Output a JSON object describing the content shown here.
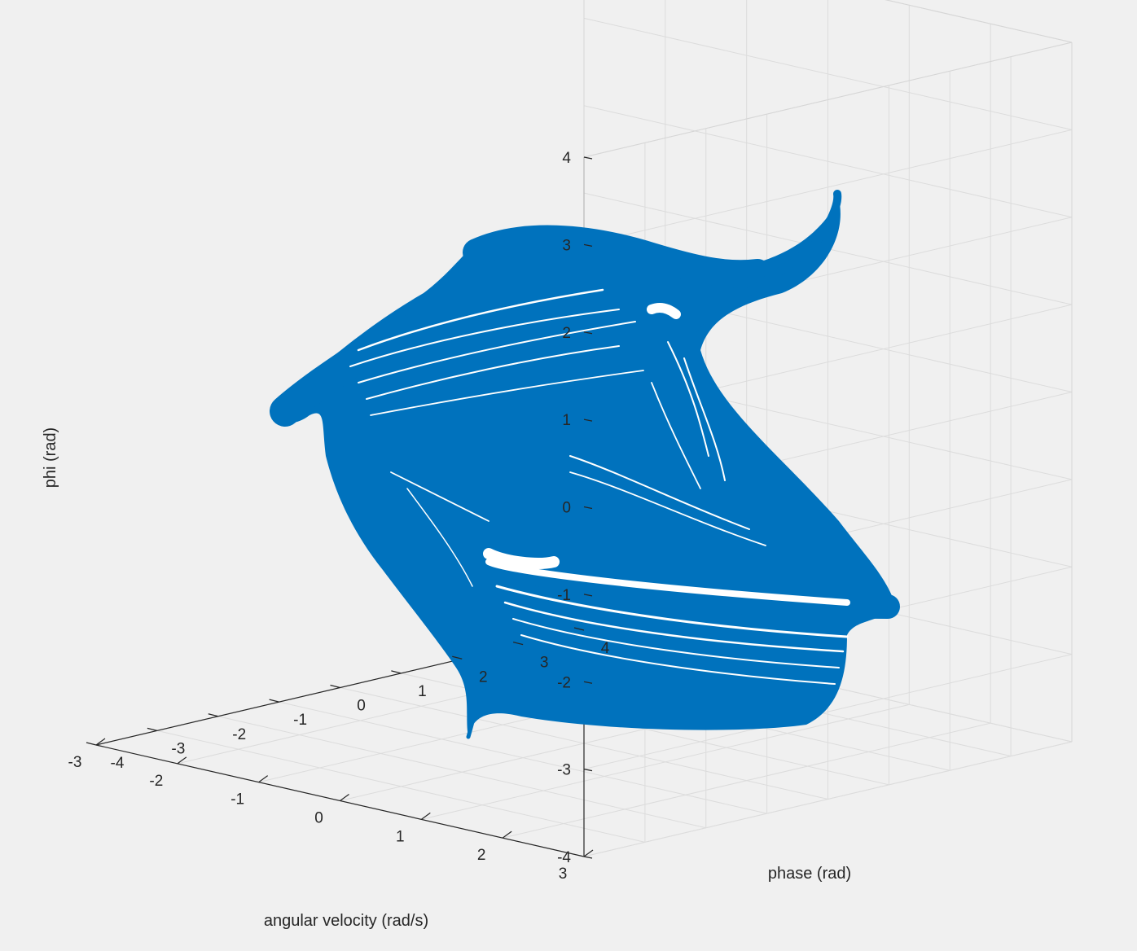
{
  "figure": {
    "background": "#f0f0f0",
    "grid_color": "#dcdcdc",
    "axis_color": "#262626",
    "line_color": "#0072bd"
  },
  "chart_data": {
    "type": "line",
    "projection": "3d",
    "grid": true,
    "box": "open",
    "title": "",
    "axes": {
      "x": {
        "label": "angular velocity (rad/s)",
        "lim": [
          -3,
          3
        ],
        "ticks": [
          3,
          2,
          1,
          0,
          -1,
          -2,
          -3
        ],
        "tick_labels": [
          "3",
          "2",
          "1",
          "0",
          "-1",
          "-2",
          "-3"
        ]
      },
      "y": {
        "label": "phase (rad)",
        "lim": [
          -4,
          4
        ],
        "ticks": [
          -4,
          -3,
          -2,
          -1,
          0,
          1,
          2,
          3,
          4
        ],
        "tick_labels": [
          "-4",
          "-3",
          "-2",
          "-1",
          "0",
          "1",
          "2",
          "3",
          "4"
        ]
      },
      "z": {
        "label": "phi (rad)",
        "lim": [
          -4,
          4
        ],
        "ticks": [
          -4,
          -3,
          -2,
          -1,
          0,
          1,
          2,
          3,
          4
        ],
        "tick_labels": [
          "-4",
          "-3",
          "-2",
          "-1",
          "0",
          "1",
          "2",
          "3",
          "4"
        ]
      }
    },
    "series": [
      {
        "color": "#0072bd",
        "description_points": [
          {
            "x": -0.3,
            "y": -2.3,
            "z": 0.6
          },
          {
            "x": 0.8,
            "y": -0.6,
            "z": 2.7
          },
          {
            "x": -0.6,
            "y": 1.5,
            "z": 3.4
          },
          {
            "x": -1.5,
            "y": 1.0,
            "z": 0.8
          },
          {
            "x": 0.9,
            "y": 2.7,
            "z": -1.8
          },
          {
            "x": -1.6,
            "y": 0.4,
            "z": -3.3
          },
          {
            "x": -1.0,
            "y": -2.6,
            "z": -3.7
          }
        ]
      }
    ]
  }
}
